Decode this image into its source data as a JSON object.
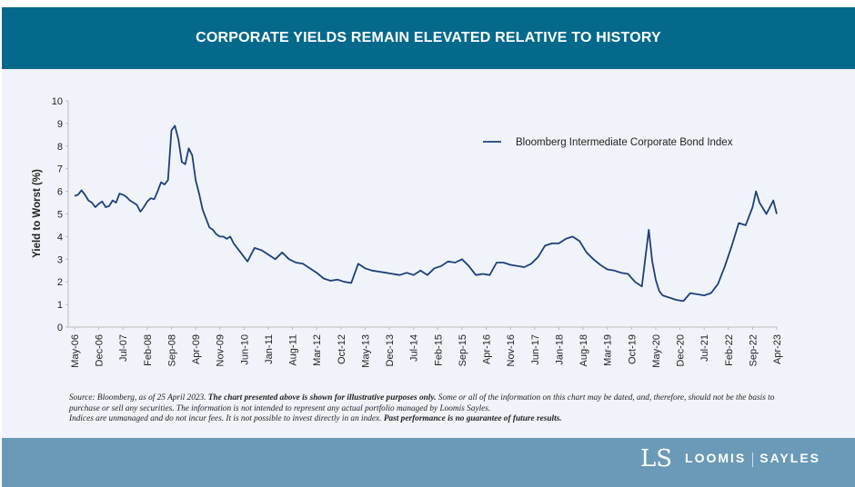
{
  "header": {
    "title": "CORPORATE YIELDS REMAIN ELEVATED RELATIVE TO HISTORY"
  },
  "footer": {
    "brand_left": "LOOMIS",
    "brand_right": "SAYLES",
    "logo_mark": "LS"
  },
  "notes": {
    "source": "Source: Bloomberg, as of 25 April 2023. ",
    "bold1": "The chart presented above is shown for illustrative purposes only.",
    "text1": " Some or all of the information on this chart may be dated, and, therefore, should not be the basis to purchase or sell any securities. The information is not intended to represent any actual portfolio managed by Loomis Sayles.",
    "text2": "Indices are unmanaged and do not incur fees. It is not possible to invest directly in an index. ",
    "bold2": "Past performance is no guarantee of future results."
  },
  "chart_data": {
    "type": "line",
    "title": "CORPORATE YIELDS REMAIN ELEVATED RELATIVE TO HISTORY",
    "xlabel": "",
    "ylabel": "Yield to Worst (%)",
    "ylim": [
      0,
      10
    ],
    "yticks": [
      0,
      1,
      2,
      3,
      4,
      5,
      6,
      7,
      8,
      9,
      10
    ],
    "x_tick_labels": [
      "May-06",
      "Dec-06",
      "Jul-07",
      "Feb-08",
      "Sep-08",
      "Apr-09",
      "Nov-09",
      "Jun-10",
      "Jan-11",
      "Aug-11",
      "Mar-12",
      "Oct-12",
      "May-13",
      "Dec-13",
      "Jul-14",
      "Feb-15",
      "Sep-15",
      "Apr-16",
      "Nov-16",
      "Jun-17",
      "Jan-18",
      "Aug-18",
      "Mar-19",
      "Oct-19",
      "May-20",
      "Dec-20",
      "Jul-21",
      "Feb-22",
      "Sep-22",
      "Apr-23"
    ],
    "x_range_months": [
      0,
      203
    ],
    "legend": {
      "position": "top-right",
      "entries": [
        "Bloomberg Intermediate Corporate Bond Index"
      ]
    },
    "grid": false,
    "series": [
      {
        "name": "Bloomberg Intermediate Corporate Bond Index",
        "color": "#1f3f7a",
        "x_month_index": [
          0,
          1,
          2,
          3,
          4,
          5,
          6,
          7,
          8,
          9,
          10,
          11,
          12,
          13,
          14,
          15,
          16,
          17,
          18,
          19,
          20,
          21,
          22,
          23,
          24,
          25,
          26,
          27,
          28,
          29,
          30,
          31,
          32,
          33,
          34,
          35,
          36,
          37,
          38,
          39,
          40,
          41,
          42,
          43,
          44,
          45,
          46,
          48,
          50,
          52,
          54,
          56,
          58,
          60,
          62,
          64,
          66,
          68,
          70,
          72,
          74,
          76,
          78,
          80,
          82,
          84,
          86,
          88,
          90,
          92,
          94,
          96,
          98,
          100,
          102,
          104,
          106,
          108,
          110,
          112,
          114,
          116,
          118,
          120,
          122,
          124,
          126,
          128,
          130,
          132,
          134,
          136,
          138,
          140,
          142,
          144,
          146,
          148,
          150,
          152,
          154,
          156,
          158,
          160,
          162,
          164,
          166,
          167,
          168,
          169,
          170,
          172,
          174,
          176,
          178,
          180,
          182,
          184,
          186,
          188,
          190,
          192,
          194,
          196,
          197,
          198,
          200,
          202,
          203
        ],
        "values": [
          5.8,
          5.85,
          6.05,
          5.85,
          5.6,
          5.5,
          5.3,
          5.45,
          5.55,
          5.3,
          5.35,
          5.6,
          5.5,
          5.9,
          5.85,
          5.75,
          5.6,
          5.5,
          5.4,
          5.1,
          5.3,
          5.55,
          5.7,
          5.65,
          6.0,
          6.4,
          6.3,
          6.5,
          8.7,
          8.9,
          8.3,
          7.3,
          7.2,
          7.9,
          7.6,
          6.5,
          5.9,
          5.2,
          4.8,
          4.4,
          4.3,
          4.1,
          4.0,
          4.0,
          3.9,
          4.0,
          3.7,
          3.3,
          2.9,
          3.5,
          3.4,
          3.2,
          3.0,
          3.3,
          3.0,
          2.85,
          2.8,
          2.6,
          2.4,
          2.15,
          2.05,
          2.1,
          2.0,
          1.95,
          2.8,
          2.6,
          2.5,
          2.45,
          2.4,
          2.35,
          2.3,
          2.4,
          2.3,
          2.5,
          2.3,
          2.6,
          2.7,
          2.9,
          2.85,
          3.0,
          2.7,
          2.3,
          2.35,
          2.3,
          2.85,
          2.85,
          2.75,
          2.7,
          2.65,
          2.8,
          3.1,
          3.6,
          3.7,
          3.7,
          3.9,
          4.0,
          3.8,
          3.3,
          3.0,
          2.75,
          2.55,
          2.5,
          2.4,
          2.35,
          2.0,
          1.8,
          4.3,
          2.9,
          2.1,
          1.6,
          1.4,
          1.3,
          1.2,
          1.15,
          1.5,
          1.45,
          1.4,
          1.5,
          1.9,
          2.7,
          3.6,
          4.6,
          4.5,
          5.3,
          6.0,
          5.5,
          5.0,
          5.6,
          5.0
        ]
      }
    ]
  }
}
